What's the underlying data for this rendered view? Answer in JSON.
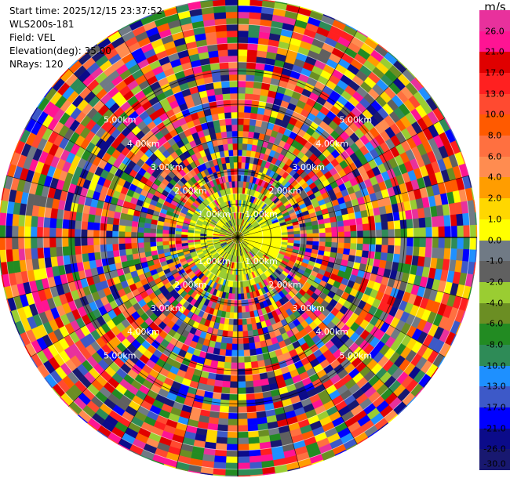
{
  "info": {
    "start_time": "Start time: 2025/12/15 23:37:52",
    "site": "WLS200s-181",
    "field": "Field: VEL",
    "elevation": "Elevation(deg): 35.00",
    "nrays": "NRays: 120"
  },
  "colorbar": {
    "unit": "m/s",
    "ticks": [
      "26.0",
      "21.0",
      "17.0",
      "13.0",
      "10.0",
      "8.0",
      "6.0",
      "4.0",
      "2.0",
      "1.0",
      "0.0",
      "-1.0",
      "-2.0",
      "-4.0",
      "-6.0",
      "-8.0",
      "-10.0",
      "-13.0",
      "-17.0",
      "-21.0",
      "-26.0",
      "-30.0"
    ],
    "colors": [
      "#e8319c",
      "#ff1493",
      "#e00000",
      "#ff2020",
      "#ff4a30",
      "#ff5a00",
      "#ff7040",
      "#ff8c50",
      "#ff9d00",
      "#ffd700",
      "#ffff00",
      "#707a85",
      "#606060",
      "#9acd32",
      "#6b8e23",
      "#228b22",
      "#2e8b57",
      "#1e90ff",
      "#3d59c8",
      "#0000ff",
      "#0b0b8a",
      "#181870"
    ]
  },
  "chart_data": {
    "type": "ppi",
    "title": "",
    "field": "VEL",
    "unit": "m/s",
    "nrays": 120,
    "elevation_deg": 35.0,
    "range_rings_km": [
      1.0,
      2.0,
      3.0,
      4.0,
      5.0
    ],
    "range_ring_labels": [
      "1.00km",
      "2.00km",
      "3.00km",
      "4.00km",
      "5.00km"
    ],
    "max_range_km": 5.98,
    "vmin": -30.0,
    "vmax": 26.0
  }
}
